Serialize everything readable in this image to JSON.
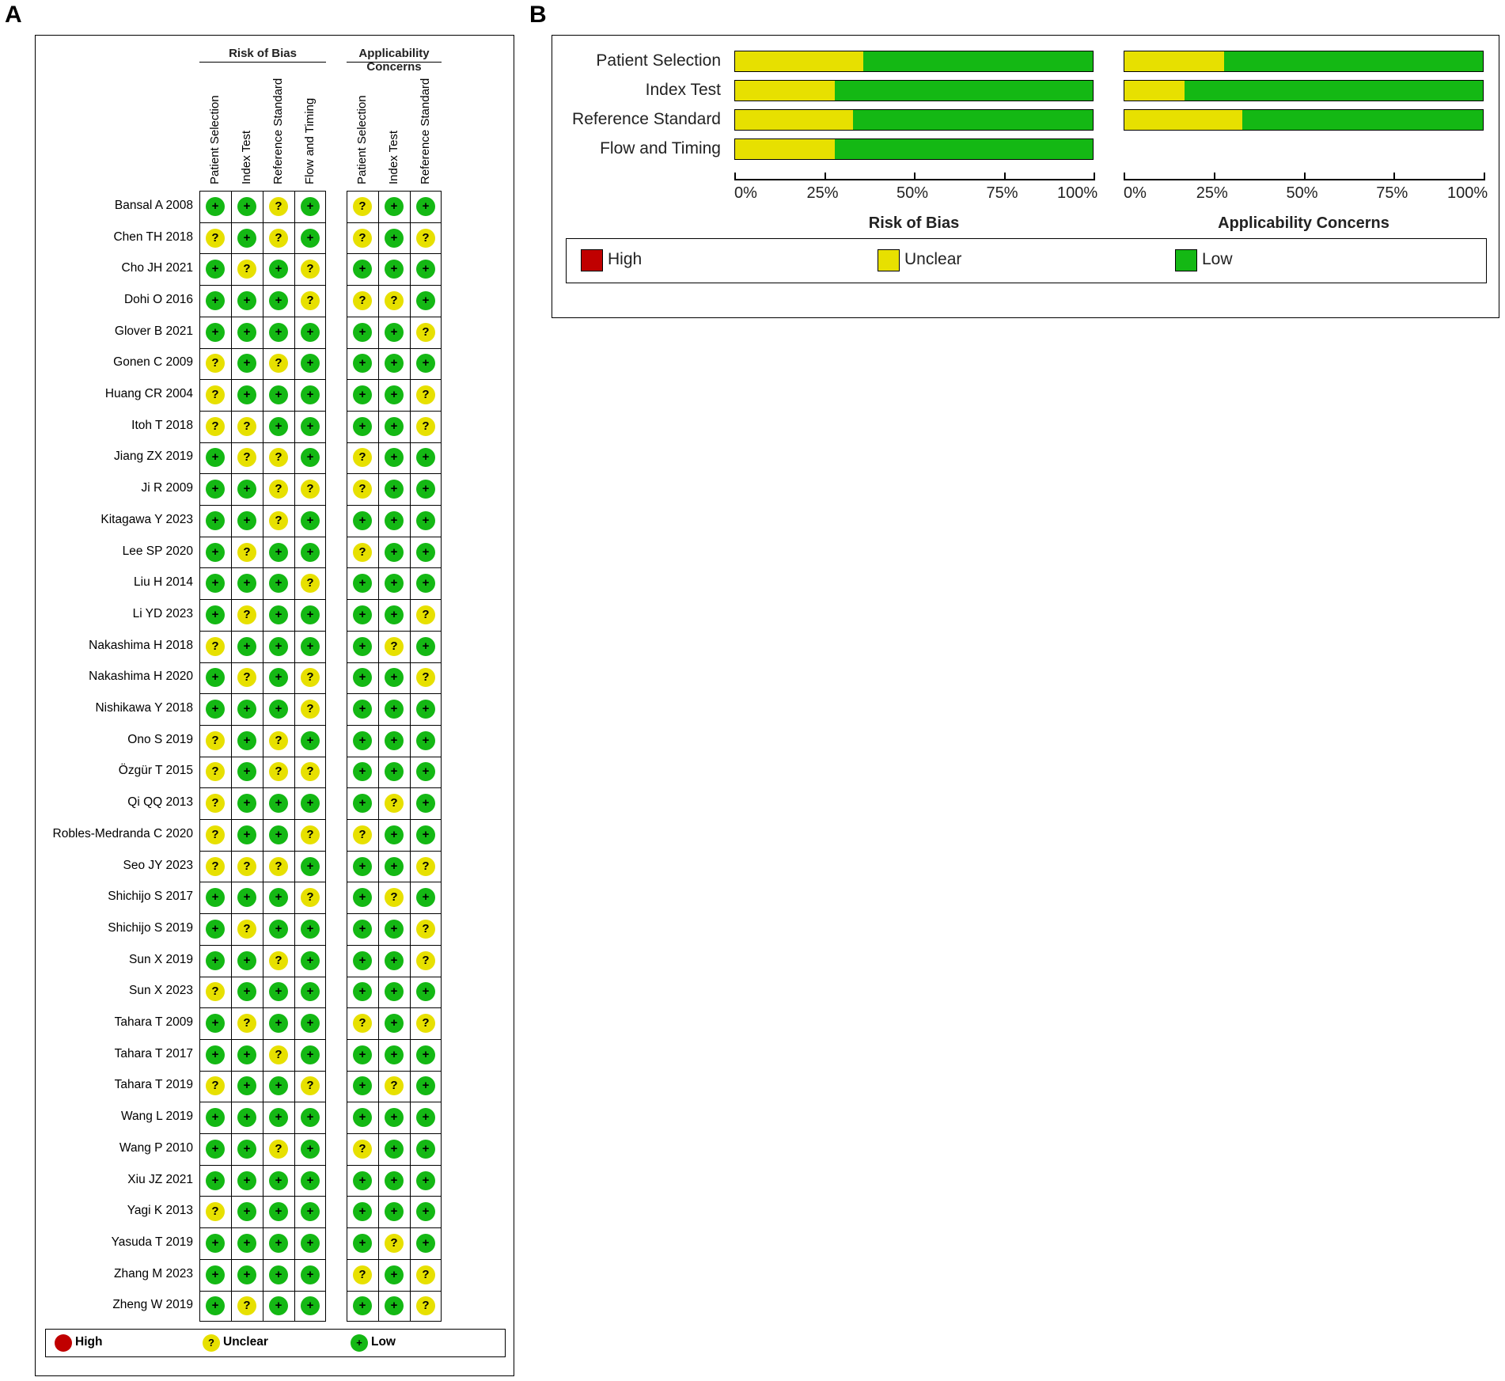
{
  "panels": {
    "a": "A",
    "b": "B"
  },
  "colors": {
    "low": "#14b814",
    "unclear": "#e7e000",
    "high": "#c00000"
  },
  "panel_a": {
    "group_rob": "Risk of Bias",
    "group_ac": "Applicability Concerns",
    "columns_rob": [
      "Patient Selection",
      "Index Test",
      "Reference Standard",
      "Flow and Timing"
    ],
    "columns_ac": [
      "Patient Selection",
      "Index Test",
      "Reference Standard"
    ],
    "symbols": {
      "low": "+",
      "unclear": "?",
      "high": ""
    },
    "legend": {
      "high": "High",
      "unclear": "Unclear",
      "low": "Low"
    }
  },
  "chart_data": [
    {
      "type": "table",
      "title": "",
      "columns": [
        "Risk of Bias: Patient Selection",
        "Risk of Bias: Index Test",
        "Risk of Bias: Reference Standard",
        "Risk of Bias: Flow and Timing",
        "Applicability Concerns: Patient Selection",
        "Applicability Concerns: Index Test",
        "Applicability Concerns: Reference Standard"
      ],
      "rows": [
        {
          "study": "Bansal A 2008",
          "values": [
            "low",
            "low",
            "unclear",
            "low",
            "unclear",
            "low",
            "low"
          ]
        },
        {
          "study": "Chen TH 2018",
          "values": [
            "unclear",
            "low",
            "unclear",
            "low",
            "unclear",
            "low",
            "unclear"
          ]
        },
        {
          "study": "Cho JH 2021",
          "values": [
            "low",
            "unclear",
            "low",
            "unclear",
            "low",
            "low",
            "low"
          ]
        },
        {
          "study": "Dohi O 2016",
          "values": [
            "low",
            "low",
            "low",
            "unclear",
            "unclear",
            "unclear",
            "low"
          ]
        },
        {
          "study": "Glover B 2021",
          "values": [
            "low",
            "low",
            "low",
            "low",
            "low",
            "low",
            "unclear"
          ]
        },
        {
          "study": "Gonen C 2009",
          "values": [
            "unclear",
            "low",
            "unclear",
            "low",
            "low",
            "low",
            "low"
          ]
        },
        {
          "study": "Huang CR 2004",
          "values": [
            "unclear",
            "low",
            "low",
            "low",
            "low",
            "low",
            "unclear"
          ]
        },
        {
          "study": "Itoh T 2018",
          "values": [
            "unclear",
            "unclear",
            "low",
            "low",
            "low",
            "low",
            "unclear"
          ]
        },
        {
          "study": "Jiang ZX 2019",
          "values": [
            "low",
            "unclear",
            "unclear",
            "low",
            "unclear",
            "low",
            "low"
          ]
        },
        {
          "study": "Ji R 2009",
          "values": [
            "low",
            "low",
            "unclear",
            "unclear",
            "unclear",
            "low",
            "low"
          ]
        },
        {
          "study": "Kitagawa Y 2023",
          "values": [
            "low",
            "low",
            "unclear",
            "low",
            "low",
            "low",
            "low"
          ]
        },
        {
          "study": "Lee SP 2020",
          "values": [
            "low",
            "unclear",
            "low",
            "low",
            "unclear",
            "low",
            "low"
          ]
        },
        {
          "study": "Liu H 2014",
          "values": [
            "low",
            "low",
            "low",
            "unclear",
            "low",
            "low",
            "low"
          ]
        },
        {
          "study": "Li YD 2023",
          "values": [
            "low",
            "unclear",
            "low",
            "low",
            "low",
            "low",
            "unclear"
          ]
        },
        {
          "study": "Nakashima H 2018",
          "values": [
            "unclear",
            "low",
            "low",
            "low",
            "low",
            "unclear",
            "low"
          ]
        },
        {
          "study": "Nakashima H 2020",
          "values": [
            "low",
            "unclear",
            "low",
            "unclear",
            "low",
            "low",
            "unclear"
          ]
        },
        {
          "study": "Nishikawa Y 2018",
          "values": [
            "low",
            "low",
            "low",
            "unclear",
            "low",
            "low",
            "low"
          ]
        },
        {
          "study": "Ono S 2019",
          "values": [
            "unclear",
            "low",
            "unclear",
            "low",
            "low",
            "low",
            "low"
          ]
        },
        {
          "study": "Özgür T 2015",
          "values": [
            "unclear",
            "low",
            "unclear",
            "unclear",
            "low",
            "low",
            "low"
          ]
        },
        {
          "study": "Qi QQ 2013",
          "values": [
            "unclear",
            "low",
            "low",
            "low",
            "low",
            "unclear",
            "low"
          ]
        },
        {
          "study": "Robles-Medranda C 2020",
          "values": [
            "unclear",
            "low",
            "low",
            "unclear",
            "unclear",
            "low",
            "low"
          ]
        },
        {
          "study": "Seo JY 2023",
          "values": [
            "unclear",
            "unclear",
            "unclear",
            "low",
            "low",
            "low",
            "unclear"
          ]
        },
        {
          "study": "Shichijo S 2017",
          "values": [
            "low",
            "low",
            "low",
            "unclear",
            "low",
            "unclear",
            "low"
          ]
        },
        {
          "study": "Shichijo S 2019",
          "values": [
            "low",
            "unclear",
            "low",
            "low",
            "low",
            "low",
            "unclear"
          ]
        },
        {
          "study": "Sun X 2019",
          "values": [
            "low",
            "low",
            "unclear",
            "low",
            "low",
            "low",
            "unclear"
          ]
        },
        {
          "study": "Sun X  2023",
          "values": [
            "unclear",
            "low",
            "low",
            "low",
            "low",
            "low",
            "low"
          ]
        },
        {
          "study": "Tahara T 2009",
          "values": [
            "low",
            "unclear",
            "low",
            "low",
            "unclear",
            "low",
            "unclear"
          ]
        },
        {
          "study": "Tahara T 2017",
          "values": [
            "low",
            "low",
            "unclear",
            "low",
            "low",
            "low",
            "low"
          ]
        },
        {
          "study": "Tahara T 2019",
          "values": [
            "unclear",
            "low",
            "low",
            "unclear",
            "low",
            "unclear",
            "low"
          ]
        },
        {
          "study": "Wang L 2019",
          "values": [
            "low",
            "low",
            "low",
            "low",
            "low",
            "low",
            "low"
          ]
        },
        {
          "study": "Wang P 2010",
          "values": [
            "low",
            "low",
            "unclear",
            "low",
            "unclear",
            "low",
            "low"
          ]
        },
        {
          "study": "Xiu JZ 2021",
          "values": [
            "low",
            "low",
            "low",
            "low",
            "low",
            "low",
            "low"
          ]
        },
        {
          "study": "Yagi K 2013",
          "values": [
            "unclear",
            "low",
            "low",
            "low",
            "low",
            "low",
            "low"
          ]
        },
        {
          "study": "Yasuda T 2019",
          "values": [
            "low",
            "low",
            "low",
            "low",
            "low",
            "unclear",
            "low"
          ]
        },
        {
          "study": "Zhang M 2023",
          "values": [
            "low",
            "low",
            "low",
            "low",
            "unclear",
            "low",
            "unclear"
          ]
        },
        {
          "study": "Zheng W 2019",
          "values": [
            "low",
            "unclear",
            "low",
            "low",
            "low",
            "low",
            "unclear"
          ]
        }
      ]
    },
    {
      "type": "bar",
      "stacked": true,
      "orientation": "horizontal",
      "categories": [
        "Patient Selection",
        "Index Test",
        "Reference Standard",
        "Flow and Timing"
      ],
      "panels": [
        {
          "title": "Risk of Bias",
          "series": [
            {
              "name": "High",
              "values": [
                0,
                0,
                0,
                0
              ]
            },
            {
              "name": "Unclear",
              "values": [
                36,
                28,
                33,
                28
              ]
            },
            {
              "name": "Low",
              "values": [
                64,
                72,
                67,
                72
              ]
            }
          ]
        },
        {
          "title": "Applicability Concerns",
          "series": [
            {
              "name": "High",
              "values": [
                0,
                0,
                0,
                null
              ]
            },
            {
              "name": "Unclear",
              "values": [
                28,
                17,
                33,
                null
              ]
            },
            {
              "name": "Low",
              "values": [
                72,
                83,
                67,
                null
              ]
            }
          ]
        }
      ],
      "xticks": [
        "0%",
        "25%",
        "50%",
        "75%",
        "100%"
      ],
      "xlim": [
        0,
        100
      ],
      "legend": [
        "High",
        "Unclear",
        "Low"
      ],
      "legend_position": "bottom"
    }
  ]
}
